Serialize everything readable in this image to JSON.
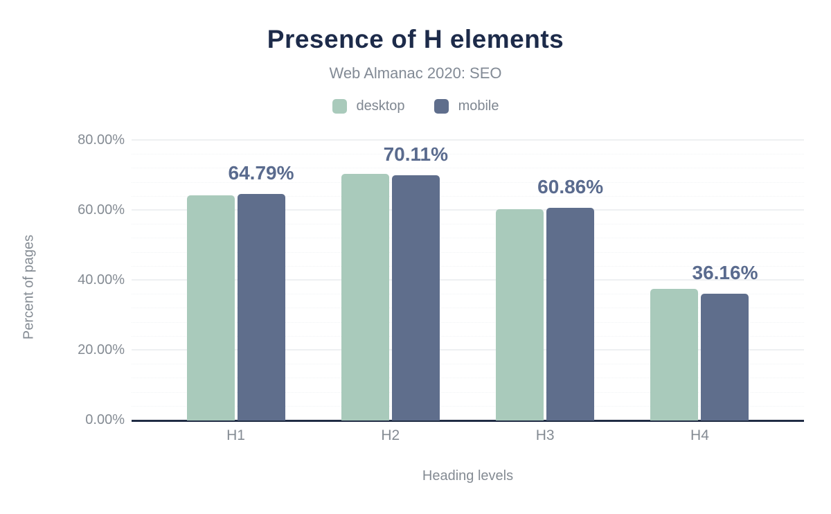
{
  "header": {
    "title": "Presence of H elements",
    "subtitle": "Web Almanac 2020: SEO"
  },
  "legend": [
    {
      "label": "desktop",
      "color": "#a9cabb"
    },
    {
      "label": "mobile",
      "color": "#5f6e8c"
    }
  ],
  "axes": {
    "y_title": "Percent of pages",
    "x_title": "Heading levels",
    "y_ticks": [
      {
        "value": 0,
        "label": "0.00%"
      },
      {
        "value": 20,
        "label": "20.00%"
      },
      {
        "value": 40,
        "label": "40.00%"
      },
      {
        "value": 60,
        "label": "60.00%"
      },
      {
        "value": 80,
        "label": "80.00%"
      }
    ]
  },
  "chart_data": {
    "type": "bar",
    "categories": [
      "H1",
      "H2",
      "H3",
      "H4"
    ],
    "series": [
      {
        "name": "desktop",
        "color": "#a9cabb",
        "values": [
          64.4,
          70.5,
          60.4,
          37.7
        ]
      },
      {
        "name": "mobile",
        "color": "#5f6e8c",
        "values": [
          64.79,
          70.11,
          60.86,
          36.16
        ]
      }
    ],
    "annotations": [
      "64.79%",
      "70.11%",
      "60.86%",
      "36.16%"
    ],
    "annotation_series": "mobile",
    "title": "Presence of H elements",
    "subtitle": "Web Almanac 2020: SEO",
    "xlabel": "Heading levels",
    "ylabel": "Percent of pages",
    "ylim": [
      0,
      84
    ],
    "grid": "horizontal major solid every 20%, minor dotted every 4%",
    "legend_position": "top-center"
  },
  "colors": {
    "title": "#1d2b4a",
    "subtitle_gray": "#828a95",
    "axis_label_gray": "#848b93",
    "annotation": "#5a6b8e",
    "axis_line": "#202c44",
    "desktop_bar": "#a9cabb",
    "mobile_bar": "#5f6e8c",
    "background": "#ffffff"
  }
}
